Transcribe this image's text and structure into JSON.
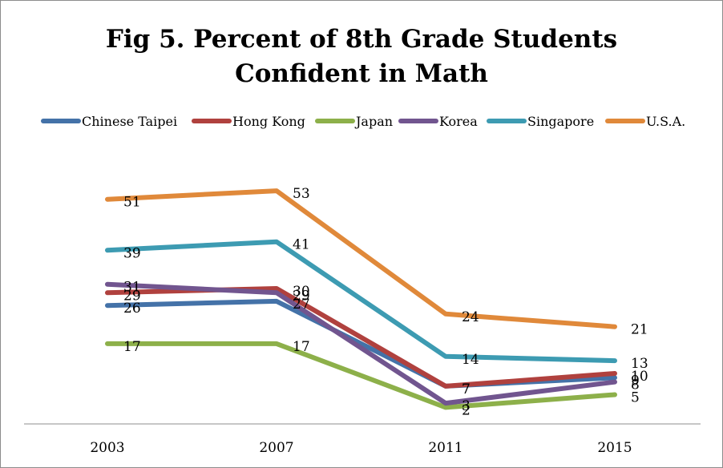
{
  "chart_data": {
    "type": "line",
    "title_line1": "Fig 5. Percent of 8th Grade Students",
    "title_line2": "Confident in Math",
    "categories": [
      "2003",
      "2007",
      "2011",
      "2015"
    ],
    "legend_position": "top",
    "grid": false,
    "xlabel": "",
    "ylabel": "",
    "ylim": [
      0,
      55
    ],
    "series": [
      {
        "name": "Chinese Taipei",
        "values": [
          26,
          27,
          7,
          9
        ],
        "labels": [
          "26",
          "27",
          "7",
          "9"
        ],
        "color": "#4472a8"
      },
      {
        "name": "Hong Kong",
        "values": [
          29,
          30,
          7,
          10
        ],
        "labels": [
          "29",
          "30",
          "7",
          "10"
        ],
        "color": "#b0413e"
      },
      {
        "name": "Japan",
        "values": [
          17,
          17,
          2,
          5
        ],
        "labels": [
          "17",
          "17",
          "2",
          "5"
        ],
        "color": "#8db04a"
      },
      {
        "name": "Korea",
        "values": [
          31,
          29,
          3,
          8
        ],
        "labels": [
          "31",
          "29",
          "3",
          "8"
        ],
        "color": "#71558f"
      },
      {
        "name": "Singapore",
        "values": [
          39,
          41,
          14,
          13
        ],
        "labels": [
          "39",
          "41",
          "14",
          "13"
        ],
        "color": "#3d9bb2"
      },
      {
        "name": "U.S.A.",
        "values": [
          51,
          53,
          24,
          21
        ],
        "labels": [
          "51",
          "53",
          "24",
          "21"
        ],
        "color": "#e0893a"
      }
    ]
  }
}
